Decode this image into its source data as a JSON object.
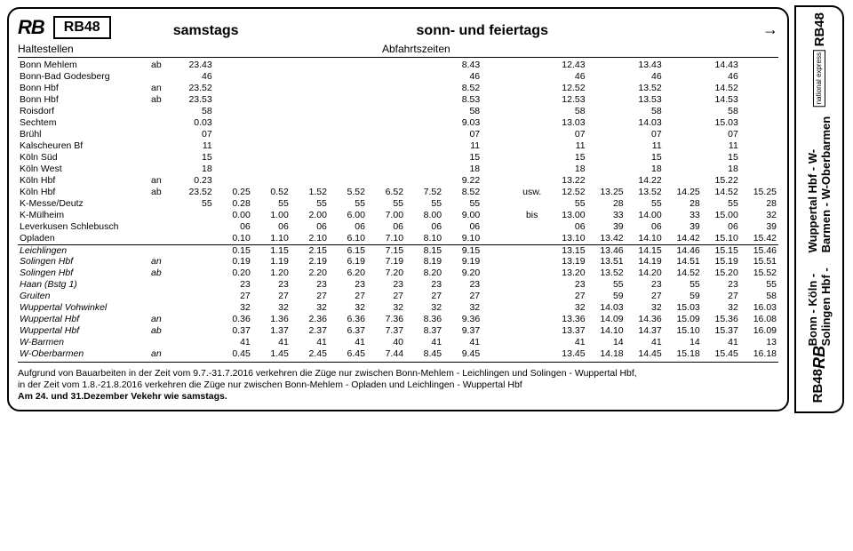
{
  "header": {
    "rb": "RB",
    "line": "RB48",
    "saturday": "samstags",
    "sunday": "sonn- und feiertags",
    "stops_label": "Haltestellen",
    "dep_label": "Abfahrtszeiten",
    "arrow": "→"
  },
  "side": {
    "top_line": "RB48",
    "logo": "national express",
    "route1": "Bonn - Köln - Solingen Hbf -",
    "route2": "Wuppertal Hbf - W-Barmen - W-Oberbarmen",
    "bot_rb": "RB",
    "bot_line": "RB48"
  },
  "notes": {
    "usw": "usw.",
    "bis": "bis"
  },
  "rows": [
    {
      "s": "Bonn Mehlem",
      "a": "ab",
      "c": [
        "23.43",
        "",
        "",
        "",
        "",
        "",
        "",
        "8.43",
        "",
        "",
        "12.43",
        "",
        "13.43",
        "",
        "14.43",
        ""
      ]
    },
    {
      "s": "Bonn-Bad Godesberg",
      "a": "",
      "c": [
        "46",
        "",
        "",
        "",
        "",
        "",
        "",
        "46",
        "",
        "",
        "46",
        "",
        "46",
        "",
        "46",
        ""
      ]
    },
    {
      "s": "Bonn Hbf",
      "a": "an",
      "c": [
        "23.52",
        "",
        "",
        "",
        "",
        "",
        "",
        "8.52",
        "",
        "",
        "12.52",
        "",
        "13.52",
        "",
        "14.52",
        ""
      ]
    },
    {
      "s": "Bonn Hbf",
      "a": "ab",
      "c": [
        "23.53",
        "",
        "",
        "",
        "",
        "",
        "",
        "8.53",
        "",
        "",
        "12.53",
        "",
        "13.53",
        "",
        "14.53",
        ""
      ]
    },
    {
      "s": "Roisdorf",
      "a": "",
      "c": [
        "58",
        "",
        "",
        "",
        "",
        "",
        "",
        "58",
        "",
        "",
        "58",
        "",
        "58",
        "",
        "58",
        ""
      ]
    },
    {
      "s": "Sechtem",
      "a": "",
      "c": [
        "0.03",
        "",
        "",
        "",
        "",
        "",
        "",
        "9.03",
        "",
        "",
        "13.03",
        "",
        "14.03",
        "",
        "15.03",
        ""
      ]
    },
    {
      "s": "Brühl",
      "a": "",
      "c": [
        "07",
        "",
        "",
        "",
        "",
        "",
        "",
        "07",
        "",
        "",
        "07",
        "",
        "07",
        "",
        "07",
        ""
      ]
    },
    {
      "s": "Kalscheuren Bf",
      "a": "",
      "c": [
        "11",
        "",
        "",
        "",
        "",
        "",
        "",
        "11",
        "",
        "",
        "11",
        "",
        "11",
        "",
        "11",
        ""
      ]
    },
    {
      "s": "Köln Süd",
      "a": "",
      "c": [
        "15",
        "",
        "",
        "",
        "",
        "",
        "",
        "15",
        "",
        "",
        "15",
        "",
        "15",
        "",
        "15",
        ""
      ]
    },
    {
      "s": "Köln West",
      "a": "",
      "c": [
        "18",
        "",
        "",
        "",
        "",
        "",
        "",
        "18",
        "",
        "",
        "18",
        "",
        "18",
        "",
        "18",
        ""
      ]
    },
    {
      "s": "Köln Hbf",
      "a": "an",
      "c": [
        "0.23",
        "",
        "",
        "",
        "",
        "",
        "",
        "9.22",
        "",
        "",
        "13.22",
        "",
        "14.22",
        "",
        "15.22",
        ""
      ]
    },
    {
      "s": "Köln Hbf",
      "a": "ab",
      "c": [
        "23.52",
        "0.25",
        "0.52",
        "1.52",
        "5.52",
        "6.52",
        "7.52",
        "8.52",
        "",
        "usw.",
        "12.52",
        "13.25",
        "13.52",
        "14.25",
        "14.52",
        "15.25"
      ]
    },
    {
      "s": "K-Messe/Deutz",
      "a": "",
      "c": [
        "55",
        "0.28",
        "55",
        "55",
        "55",
        "55",
        "55",
        "55",
        "",
        "",
        "55",
        "28",
        "55",
        "28",
        "55",
        "28"
      ]
    },
    {
      "s": "K-Mülheim",
      "a": "",
      "c": [
        "",
        "0.00",
        "1.00",
        "2.00",
        "6.00",
        "7.00",
        "8.00",
        "9.00",
        "",
        "bis",
        "13.00",
        "33",
        "14.00",
        "33",
        "15.00",
        "32"
      ]
    },
    {
      "s": "Leverkusen Schlebusch",
      "a": "",
      "c": [
        "",
        "06",
        "06",
        "06",
        "06",
        "06",
        "06",
        "06",
        "",
        "",
        "06",
        "39",
        "06",
        "39",
        "06",
        "39"
      ]
    },
    {
      "s": "Opladen",
      "a": "",
      "c": [
        "",
        "0.10",
        "1.10",
        "2.10",
        "6.10",
        "7.10",
        "8.10",
        "9.10",
        "",
        "",
        "13.10",
        "13.42",
        "14.10",
        "14.42",
        "15.10",
        "15.42"
      ],
      "sep": true
    },
    {
      "s": "Leichlingen",
      "a": "",
      "it": true,
      "c": [
        "",
        "0.15",
        "1.15",
        "2.15",
        "6.15",
        "7.15",
        "8.15",
        "9.15",
        "",
        "",
        "13.15",
        "13.46",
        "14.15",
        "14.46",
        "15.15",
        "15.46"
      ]
    },
    {
      "s": "Solingen Hbf",
      "a": "an",
      "it": true,
      "c": [
        "",
        "0.19",
        "1.19",
        "2.19",
        "6.19",
        "7.19",
        "8.19",
        "9.19",
        "",
        "",
        "13.19",
        "13.51",
        "14.19",
        "14.51",
        "15.19",
        "15.51"
      ]
    },
    {
      "s": "Solingen Hbf",
      "a": "ab",
      "it": true,
      "c": [
        "",
        "0.20",
        "1.20",
        "2.20",
        "6.20",
        "7.20",
        "8.20",
        "9.20",
        "",
        "",
        "13.20",
        "13.52",
        "14.20",
        "14.52",
        "15.20",
        "15.52"
      ]
    },
    {
      "s": "Haan (Bstg 1)",
      "a": "",
      "it": true,
      "c": [
        "",
        "23",
        "23",
        "23",
        "23",
        "23",
        "23",
        "23",
        "",
        "",
        "23",
        "55",
        "23",
        "55",
        "23",
        "55"
      ]
    },
    {
      "s": "Gruiten",
      "a": "",
      "it": true,
      "c": [
        "",
        "27",
        "27",
        "27",
        "27",
        "27",
        "27",
        "27",
        "",
        "",
        "27",
        "59",
        "27",
        "59",
        "27",
        "58"
      ]
    },
    {
      "s": "Wuppertal Vohwinkel",
      "a": "",
      "it": true,
      "c": [
        "",
        "32",
        "32",
        "32",
        "32",
        "32",
        "32",
        "32",
        "",
        "",
        "32",
        "14.03",
        "32",
        "15.03",
        "32",
        "16.03"
      ]
    },
    {
      "s": "Wuppertal Hbf",
      "a": "an",
      "it": true,
      "c": [
        "",
        "0.36",
        "1.36",
        "2.36",
        "6.36",
        "7.36",
        "8.36",
        "9.36",
        "",
        "",
        "13.36",
        "14.09",
        "14.36",
        "15.09",
        "15.36",
        "16.08"
      ]
    },
    {
      "s": "Wuppertal Hbf",
      "a": "ab",
      "it": true,
      "c": [
        "",
        "0.37",
        "1.37",
        "2.37",
        "6.37",
        "7.37",
        "8.37",
        "9.37",
        "",
        "",
        "13.37",
        "14.10",
        "14.37",
        "15.10",
        "15.37",
        "16.09"
      ]
    },
    {
      "s": "W-Barmen",
      "a": "",
      "it": true,
      "c": [
        "",
        "41",
        "41",
        "41",
        "41",
        "40",
        "41",
        "41",
        "",
        "",
        "41",
        "14",
        "41",
        "14",
        "41",
        "13"
      ]
    },
    {
      "s": "W-Oberbarmen",
      "a": "an",
      "it": true,
      "c": [
        "",
        "0.45",
        "1.45",
        "2.45",
        "6.45",
        "7.44",
        "8.45",
        "9.45",
        "",
        "",
        "13.45",
        "14.18",
        "14.45",
        "15.18",
        "15.45",
        "16.18"
      ]
    }
  ],
  "foot": {
    "l1": "Aufgrund von Bauarbeiten in der Zeit vom 9.7.-31.7.2016 verkehren die Züge nur zwischen Bonn-Mehlem - Leichlingen und Solingen - Wuppertal Hbf,",
    "l2": "in der Zeit vom 1.8.-21.8.2016 verkehren die Züge nur zwischen Bonn-Mehlem - Opladen und Leichlingen - Wuppertal Hbf",
    "l3": "Am 24. und 31.Dezember Vekehr wie samstags."
  }
}
